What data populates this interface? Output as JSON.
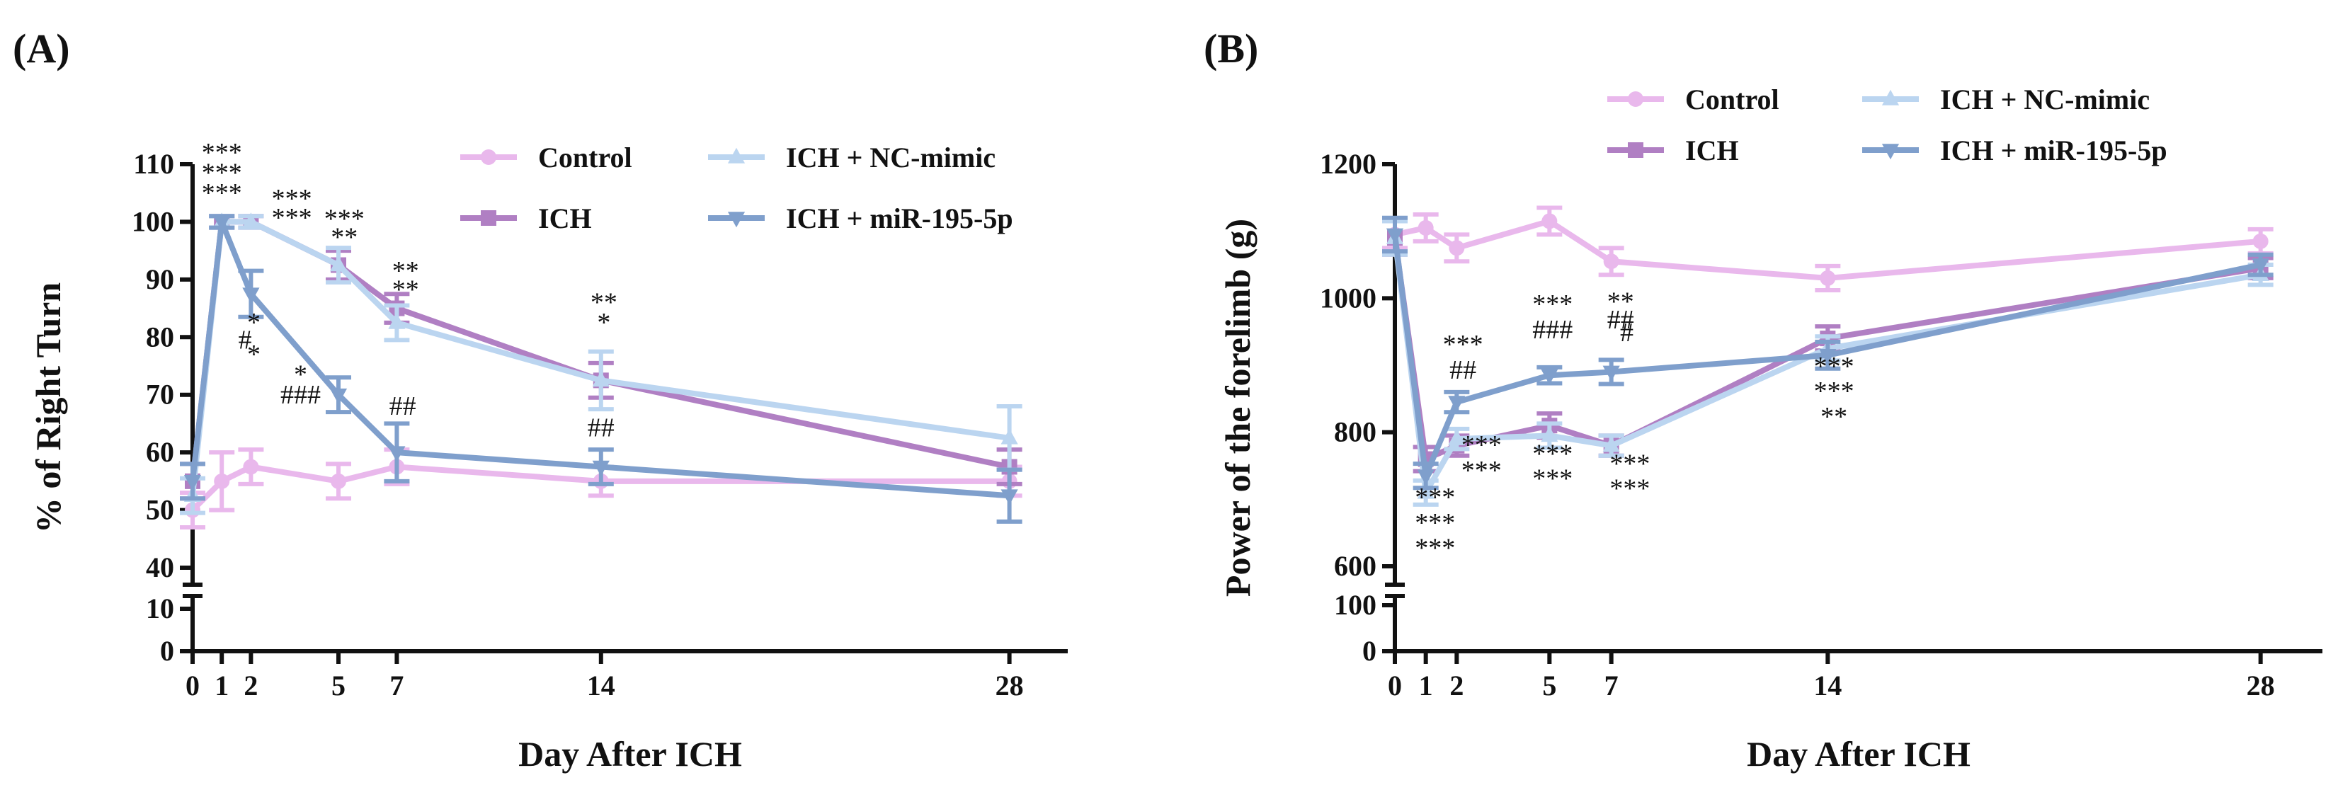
{
  "chart_data": [
    {
      "type": "line",
      "panel_label": "(A)",
      "xlabel": "Day After ICH",
      "ylabel": "% of Right Turn",
      "x": [
        0,
        1,
        2,
        5,
        7,
        14,
        28
      ],
      "x_tick_labels": [
        "0",
        "1",
        "2",
        "5",
        "7",
        "14",
        "28"
      ],
      "xlim": [
        0,
        30
      ],
      "y_axis_break": true,
      "ylim_lower": [
        0,
        10
      ],
      "ylim_upper": [
        40,
        110
      ],
      "y_ticks_lower": [
        0,
        10
      ],
      "y_ticks_upper": [
        40,
        50,
        60,
        70,
        80,
        90,
        100,
        110
      ],
      "y_tick_labels_lower": [
        "0",
        "10"
      ],
      "y_tick_labels_upper": [
        "40",
        "50",
        "60",
        "70",
        "80",
        "90",
        "100",
        "110"
      ],
      "legend_position": "top-right",
      "series": [
        {
          "name": "Control",
          "color": "#E9B8EC",
          "marker": "circle",
          "values": [
            50,
            55,
            57.5,
            55,
            57.5,
            55,
            55
          ],
          "err": [
            3,
            5,
            3,
            3,
            3,
            2.5,
            2.5
          ]
        },
        {
          "name": "ICH",
          "color": "#B07FC3",
          "marker": "square",
          "values": [
            55,
            100,
            100,
            92.5,
            85,
            72.5,
            57.5
          ],
          "err": [
            3,
            1,
            1,
            2.5,
            2.5,
            3,
            3
          ]
        },
        {
          "name": "ICH + NC-mimic",
          "color": "#BBD5F0",
          "marker": "triangle",
          "values": [
            52.5,
            100,
            100,
            92.5,
            82.5,
            72.5,
            62.5
          ],
          "err": [
            3,
            1,
            1,
            3,
            3,
            5,
            5.5
          ]
        },
        {
          "name": "ICH + miR-195-5p",
          "color": "#7F9FCC",
          "marker": "triangle-down",
          "values": [
            55,
            100,
            87.5,
            70,
            60,
            57.5,
            52.5
          ],
          "err": [
            3,
            1,
            4,
            3,
            5,
            3,
            4.5
          ]
        }
      ],
      "annotations": [
        {
          "text": "***",
          "x": 1,
          "y": 110.5
        },
        {
          "text": "***",
          "x": 1,
          "y": 107
        },
        {
          "text": "***",
          "x": 1,
          "y": 103.5
        },
        {
          "text": "***",
          "x": 3.4,
          "y": 102.5
        },
        {
          "text": "***",
          "x": 3.4,
          "y": 99.2
        },
        {
          "text": "***",
          "x": 5.2,
          "y": 99
        },
        {
          "text": "**",
          "x": 5.2,
          "y": 95.8
        },
        {
          "text": "**",
          "x": 7.3,
          "y": 90
        },
        {
          "text": "**",
          "x": 7.3,
          "y": 86.7
        },
        {
          "text": "*",
          "x": 2.1,
          "y": 81
        },
        {
          "text": "#",
          "x": 1.8,
          "y": 78
        },
        {
          "text": "*",
          "x": 2.1,
          "y": 75.5
        },
        {
          "text": "*",
          "x": 3.7,
          "y": 72
        },
        {
          "text": "###",
          "x": 3.7,
          "y": 68.5
        },
        {
          "text": "##",
          "x": 7.2,
          "y": 66.5
        },
        {
          "text": "**",
          "x": 14.1,
          "y": 84.5
        },
        {
          "text": "*",
          "x": 14.1,
          "y": 81
        },
        {
          "text": "##",
          "x": 14,
          "y": 62.8
        }
      ]
    },
    {
      "type": "line",
      "panel_label": "(B)",
      "xlabel": "Day After ICH",
      "ylabel": "Power of the forelimb (g)",
      "x": [
        0,
        1,
        2,
        5,
        7,
        14,
        28
      ],
      "x_tick_labels": [
        "0",
        "1",
        "2",
        "5",
        "7",
        "14",
        "28"
      ],
      "xlim": [
        0,
        30
      ],
      "y_axis_break": true,
      "ylim_lower": [
        0,
        100
      ],
      "ylim_upper": [
        600,
        1200
      ],
      "y_ticks_lower": [
        0,
        100
      ],
      "y_ticks_upper": [
        600,
        800,
        1000,
        1200
      ],
      "y_tick_labels_lower": [
        "0",
        "100"
      ],
      "y_tick_labels_upper": [
        "600",
        "800",
        "1000",
        "1200"
      ],
      "legend_position": "top-right",
      "series": [
        {
          "name": "Control",
          "color": "#E9B8EC",
          "marker": "circle",
          "values": [
            1095,
            1105,
            1075,
            1115,
            1055,
            1030,
            1085
          ],
          "err": [
            20,
            20,
            20,
            20,
            20,
            18,
            18
          ]
        },
        {
          "name": "ICH",
          "color": "#B07FC3",
          "marker": "square",
          "values": [
            1090,
            760,
            780,
            810,
            780,
            940,
            1045
          ],
          "err": [
            25,
            18,
            15,
            18,
            15,
            18,
            15
          ]
        },
        {
          "name": "ICH + NC-mimic",
          "color": "#BBD5F0",
          "marker": "triangle",
          "values": [
            1090,
            710,
            790,
            795,
            780,
            925,
            1035
          ],
          "err": [
            25,
            18,
            15,
            18,
            15,
            18,
            15
          ]
        },
        {
          "name": "ICH + miR-195-5p",
          "color": "#7F9FCC",
          "marker": "triangle-down",
          "values": [
            1095,
            735,
            845,
            885,
            890,
            915,
            1050
          ],
          "err": [
            25,
            18,
            15,
            12,
            18,
            20,
            15
          ]
        }
      ],
      "annotations": [
        {
          "text": "***",
          "x": 2.2,
          "y": 918
        },
        {
          "text": "##",
          "x": 2.2,
          "y": 880
        },
        {
          "text": "***",
          "x": 5.1,
          "y": 978
        },
        {
          "text": "###",
          "x": 5.1,
          "y": 940
        },
        {
          "text": "**",
          "x": 7.3,
          "y": 982
        },
        {
          "text": "##",
          "x": 7.3,
          "y": 955
        },
        {
          "text": "#",
          "x": 7.5,
          "y": 936
        },
        {
          "text": "***",
          "x": 2.8,
          "y": 768
        },
        {
          "text": "***",
          "x": 2.8,
          "y": 730
        },
        {
          "text": "***",
          "x": 5.1,
          "y": 755
        },
        {
          "text": "***",
          "x": 5.1,
          "y": 718
        },
        {
          "text": "***",
          "x": 7.6,
          "y": 740
        },
        {
          "text": "***",
          "x": 7.6,
          "y": 703
        },
        {
          "text": "***",
          "x": 1.3,
          "y": 690
        },
        {
          "text": "***",
          "x": 1.3,
          "y": 652
        },
        {
          "text": "***",
          "x": 1.3,
          "y": 614
        },
        {
          "text": "***",
          "x": 14.2,
          "y": 885
        },
        {
          "text": "***",
          "x": 14.2,
          "y": 848
        },
        {
          "text": "**",
          "x": 14.2,
          "y": 810
        }
      ]
    }
  ]
}
